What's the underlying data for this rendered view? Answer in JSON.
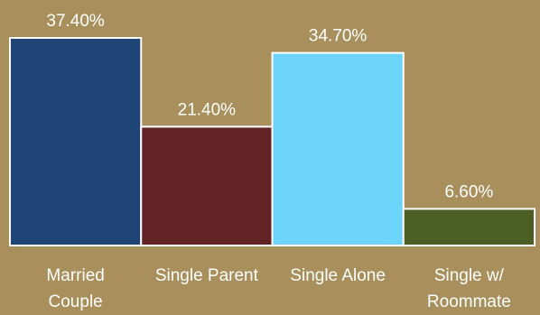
{
  "chart_data": {
    "type": "bar",
    "categories": [
      [
        "Married",
        "Couple"
      ],
      [
        "Single Parent"
      ],
      [
        "Single Alone"
      ],
      [
        "Single w/",
        "Roommate"
      ]
    ],
    "values": [
      37.4,
      21.4,
      34.7,
      6.6
    ],
    "data_labels": [
      "37.40%",
      "21.40%",
      "34.70%",
      "6.60%"
    ],
    "colors": [
      "#1f4577",
      "#622325",
      "#6bd4f8",
      "#4b5e24"
    ],
    "bar_outline": "#ffffff",
    "background": "#a98f5c",
    "title": "",
    "xlabel": "",
    "ylabel": "",
    "ylim": [
      0,
      37.4
    ],
    "grid": false,
    "legend": "none"
  }
}
